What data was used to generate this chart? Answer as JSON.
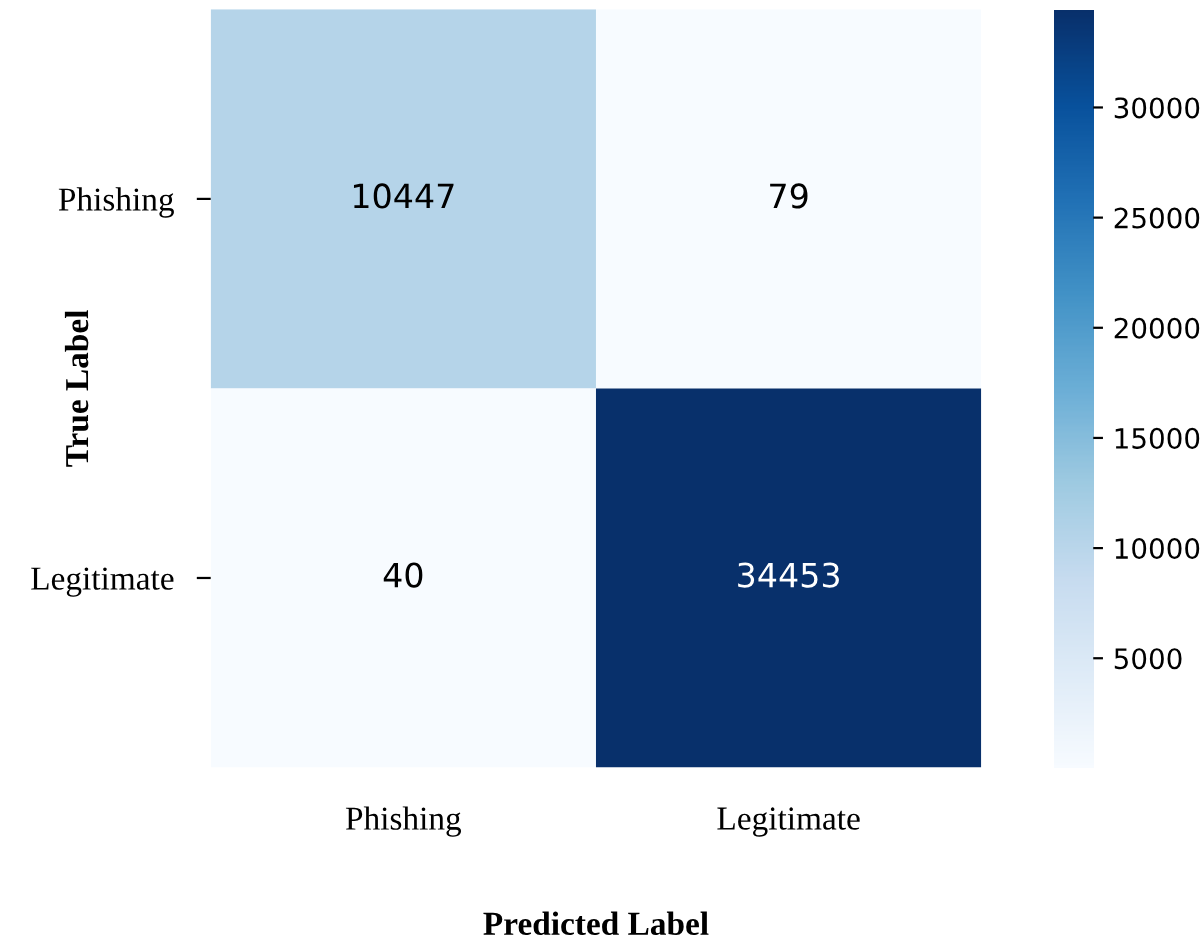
{
  "chart_data": {
    "type": "heatmap",
    "xlabel": "Predicted Label",
    "ylabel": "True Label",
    "categories": [
      "Phishing",
      "Legitimate"
    ],
    "y_categories": [
      "Phishing",
      "Legitimate"
    ],
    "cells": [
      [
        10447,
        79
      ],
      [
        40,
        34453
      ]
    ],
    "clim": [
      40,
      34453
    ],
    "cticks": [
      5000,
      10000,
      15000,
      20000,
      25000,
      30000
    ],
    "data_labels": true
  }
}
